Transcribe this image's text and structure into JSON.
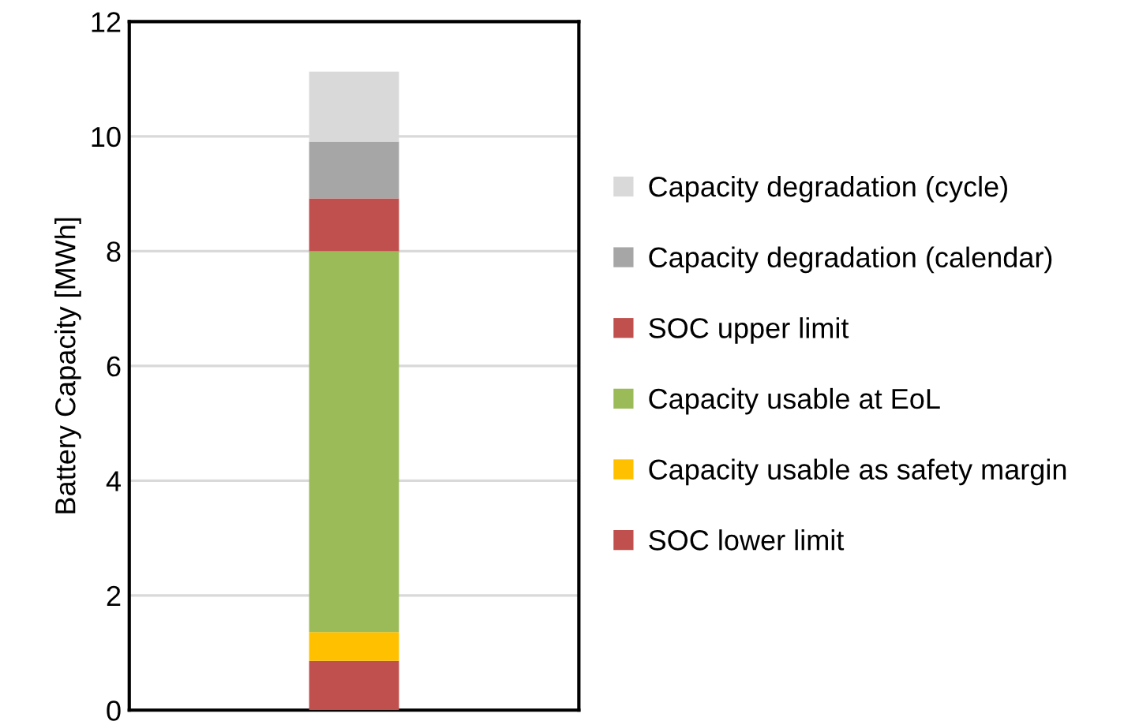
{
  "chart_data": {
    "type": "bar",
    "stacked": true,
    "ylabel": "Battery Capacity [MWh]",
    "categories": [
      null
    ],
    "series": [
      {
        "name": "SOC lower limit",
        "color": "#c0504d",
        "values": [
          0.86
        ]
      },
      {
        "name": "Capacity usable as safety margin",
        "color": "#ffc000",
        "values": [
          0.5
        ]
      },
      {
        "name": "Capacity usable at EoL",
        "color": "#9bbb59",
        "values": [
          6.64
        ]
      },
      {
        "name": "SOC upper limit",
        "color": "#c0504d",
        "values": [
          0.92
        ]
      },
      {
        "name": "Capacity degradation (calendar)",
        "color": "#a6a6a6",
        "values": [
          0.99
        ]
      },
      {
        "name": "Capacity degradation (cycle)",
        "color": "#d9d9d9",
        "values": [
          1.22
        ]
      }
    ],
    "ylim": [
      0,
      12
    ],
    "yticks": [
      0,
      2,
      4,
      6,
      8,
      10,
      12
    ],
    "grid": "y",
    "legend": "right"
  }
}
